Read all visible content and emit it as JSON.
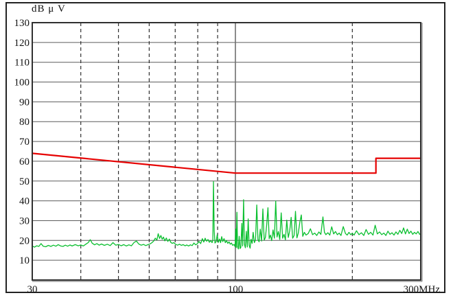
{
  "chart_data": {
    "type": "line",
    "title": "dB μ V",
    "x_axis": {
      "scale": "log",
      "min": 30,
      "max": 300,
      "unit": "MHz",
      "ticks": [
        {
          "label": "30",
          "value": 30
        },
        {
          "label": "100",
          "value": 100
        },
        {
          "label": "300MHz",
          "value": 300
        }
      ],
      "dashed_gridlines": [
        40,
        50,
        60,
        70,
        80,
        90,
        200
      ],
      "solid_gridlines": [
        100
      ]
    },
    "y_axis": {
      "min": 0,
      "max": 130,
      "tick_step": 10,
      "tick_labels": [
        130,
        120,
        110,
        100,
        90,
        80,
        70,
        60,
        50,
        40,
        30,
        20,
        10
      ],
      "unit": "dBμV",
      "grid": true
    },
    "colors": {
      "limit_line": "#e60000",
      "emission_trace": "#0abf2f",
      "h_grid": "#5c5c5c",
      "v_grid_dashed": "#2e2e2e",
      "v_grid_solid": "#6e6e6e",
      "plot_border": "#2f2f2f",
      "text": "#111111"
    },
    "legend": {
      "shown": false
    },
    "series": [
      {
        "name": "limit-line",
        "role": "limit",
        "points": [
          [
            30,
            64
          ],
          [
            100,
            54
          ],
          [
            230,
            54
          ],
          [
            230,
            61.5
          ],
          [
            300,
            61.5
          ]
        ]
      },
      {
        "name": "emission-trace",
        "role": "measurement",
        "points": [
          [
            30,
            17.2
          ],
          [
            30.4,
            16.6
          ],
          [
            30.8,
            17.3
          ],
          [
            31.2,
            17.0
          ],
          [
            31.6,
            18.4
          ],
          [
            32,
            17.1
          ],
          [
            32.5,
            16.8
          ],
          [
            33,
            17.5
          ],
          [
            33.5,
            17.0
          ],
          [
            34,
            17.6
          ],
          [
            34.5,
            17.1
          ],
          [
            35,
            17.9
          ],
          [
            35.5,
            17.2
          ],
          [
            36,
            17.0
          ],
          [
            36.5,
            17.6
          ],
          [
            37,
            17.1
          ],
          [
            37.5,
            17.7
          ],
          [
            38,
            17.2
          ],
          [
            38.7,
            17.9
          ],
          [
            39.4,
            17.3
          ],
          [
            40,
            17.7
          ],
          [
            40.6,
            17.2
          ],
          [
            41.2,
            18.1
          ],
          [
            41.8,
            18.9
          ],
          [
            42.3,
            20.4
          ],
          [
            42.8,
            18.6
          ],
          [
            43.4,
            17.8
          ],
          [
            44,
            18.4
          ],
          [
            44.6,
            17.6
          ],
          [
            45.2,
            18.2
          ],
          [
            46,
            17.5
          ],
          [
            46.8,
            18.1
          ],
          [
            47.6,
            17.4
          ],
          [
            48.4,
            18.9
          ],
          [
            49.2,
            17.6
          ],
          [
            50,
            18.0
          ],
          [
            50.8,
            17.3
          ],
          [
            51.6,
            17.9
          ],
          [
            52.4,
            17.2
          ],
          [
            53.2,
            17.8
          ],
          [
            54,
            17.3
          ],
          [
            54.8,
            18.9
          ],
          [
            55.6,
            19.7
          ],
          [
            56.4,
            18.2
          ],
          [
            57.2,
            17.6
          ],
          [
            58,
            18.0
          ],
          [
            58.8,
            17.4
          ],
          [
            59.6,
            17.9
          ],
          [
            60.4,
            18.3
          ],
          [
            61,
            18.9
          ],
          [
            61.6,
            19.7
          ],
          [
            62.2,
            21.1
          ],
          [
            62.8,
            20.2
          ],
          [
            63.3,
            23.4
          ],
          [
            63.8,
            21.0
          ],
          [
            64.3,
            22.5
          ],
          [
            64.8,
            20.6
          ],
          [
            65.3,
            21.7
          ],
          [
            65.8,
            19.8
          ],
          [
            66.4,
            21.2
          ],
          [
            67,
            19.5
          ],
          [
            67.6,
            20.7
          ],
          [
            68.2,
            19.0
          ],
          [
            68.8,
            18.5
          ],
          [
            69.4,
            18.9
          ],
          [
            70.2,
            18.0
          ],
          [
            71,
            17.6
          ],
          [
            71.8,
            18.1
          ],
          [
            72.6,
            17.5
          ],
          [
            73.4,
            17.9
          ],
          [
            74.2,
            17.3
          ],
          [
            75,
            17.7
          ],
          [
            75.8,
            17.2
          ],
          [
            76.6,
            17.8
          ],
          [
            77.4,
            17.4
          ],
          [
            78.2,
            18.7
          ],
          [
            79,
            17.8
          ],
          [
            79.8,
            18.3
          ],
          [
            80.6,
            19.5
          ],
          [
            81.4,
            18.4
          ],
          [
            82.2,
            20.9
          ],
          [
            82.9,
            19.2
          ],
          [
            83.6,
            21.1
          ],
          [
            84.3,
            19.6
          ],
          [
            85,
            20.5
          ],
          [
            85.7,
            19.1
          ],
          [
            86.4,
            19.9
          ],
          [
            87.1,
            18.9
          ],
          [
            87.5,
            20.1
          ],
          [
            87.8,
            49.7
          ],
          [
            88.2,
            24.8
          ],
          [
            88.6,
            18.7
          ],
          [
            89.2,
            19.4
          ],
          [
            89.8,
            22.9
          ],
          [
            90.4,
            19.0
          ],
          [
            91,
            20.7
          ],
          [
            91.6,
            18.9
          ],
          [
            92.2,
            21.9
          ],
          [
            92.8,
            19.4
          ],
          [
            93.5,
            20.9
          ],
          [
            94.2,
            18.9
          ],
          [
            94.9,
            19.9
          ],
          [
            95.6,
            18.5
          ],
          [
            96.3,
            19.3
          ],
          [
            97,
            18.1
          ],
          [
            97.7,
            18.7
          ],
          [
            98.4,
            17.5
          ],
          [
            99.2,
            18.0
          ],
          [
            99.8,
            16.9
          ],
          [
            100.2,
            25.8
          ],
          [
            100.5,
            16.4
          ],
          [
            100.9,
            34.2
          ],
          [
            101.3,
            16.8
          ],
          [
            101.8,
            15.7
          ],
          [
            102.3,
            22.1
          ],
          [
            102.8,
            15.9
          ],
          [
            103.3,
            16.5
          ],
          [
            103.9,
            28.6
          ],
          [
            104.4,
            17.2
          ],
          [
            105,
            40.6
          ],
          [
            105.5,
            18.1
          ],
          [
            106.1,
            16.3
          ],
          [
            106.7,
            24.6
          ],
          [
            107.3,
            16.7
          ],
          [
            107.9,
            30.9
          ],
          [
            108.5,
            17.5
          ],
          [
            109.1,
            16.1
          ],
          [
            109.7,
            20.6
          ],
          [
            110.4,
            18.5
          ],
          [
            111.1,
            24.1
          ],
          [
            111.9,
            18.9
          ],
          [
            112.7,
            20.3
          ],
          [
            113.5,
            37.9
          ],
          [
            114.3,
            20.5
          ],
          [
            115.1,
            19.3
          ],
          [
            115.9,
            25.7
          ],
          [
            116.8,
            19.7
          ],
          [
            117.7,
            35.9
          ],
          [
            118.6,
            20.1
          ],
          [
            119.5,
            21.5
          ],
          [
            120.4,
            28.1
          ],
          [
            121.3,
            36.5
          ],
          [
            122.2,
            20.9
          ],
          [
            123.1,
            22.7
          ],
          [
            124,
            19.9
          ],
          [
            125,
            25.3
          ],
          [
            126,
            21.1
          ],
          [
            127,
            39.9
          ],
          [
            128,
            21.7
          ],
          [
            129,
            24.5
          ],
          [
            130.1,
            20.5
          ],
          [
            131.2,
            33.9
          ],
          [
            132.3,
            21.1
          ],
          [
            133.4,
            23.1
          ],
          [
            134.5,
            20.3
          ],
          [
            135.6,
            30.3
          ],
          [
            136.8,
            21.5
          ],
          [
            138,
            24.9
          ],
          [
            139.2,
            31.7
          ],
          [
            140.4,
            21.1
          ],
          [
            141.6,
            22.5
          ],
          [
            142.8,
            34.7
          ],
          [
            144,
            21.3
          ],
          [
            145.2,
            23.7
          ],
          [
            146.5,
            29.1
          ],
          [
            147.8,
            32.9
          ],
          [
            149.1,
            22.1
          ],
          [
            150.5,
            24.1
          ],
          [
            152,
            22.7
          ],
          [
            154,
            23.5
          ],
          [
            156,
            25.9
          ],
          [
            158,
            22.9
          ],
          [
            160,
            23.7
          ],
          [
            162,
            22.5
          ],
          [
            164,
            24.3
          ],
          [
            166,
            23.1
          ],
          [
            168,
            31.9
          ],
          [
            169.5,
            24.1
          ],
          [
            171,
            22.9
          ],
          [
            173,
            23.9
          ],
          [
            175,
            22.7
          ],
          [
            177,
            26.9
          ],
          [
            179,
            23.3
          ],
          [
            181,
            24.5
          ],
          [
            183,
            22.9
          ],
          [
            185,
            23.7
          ],
          [
            187,
            22.5
          ],
          [
            189.5,
            27.0
          ],
          [
            192,
            23.5
          ],
          [
            194,
            22.7
          ],
          [
            196,
            24.1
          ],
          [
            198,
            22.9
          ],
          [
            200,
            23.6
          ],
          [
            202,
            22.7
          ],
          [
            205,
            24.9
          ],
          [
            208,
            22.9
          ],
          [
            211,
            23.9
          ],
          [
            214,
            22.5
          ],
          [
            217,
            25.5
          ],
          [
            220,
            23.1
          ],
          [
            223,
            24.1
          ],
          [
            226,
            22.7
          ],
          [
            229,
            27.7
          ],
          [
            232,
            23.3
          ],
          [
            235,
            24.3
          ],
          [
            238,
            22.9
          ],
          [
            241,
            23.7
          ],
          [
            244,
            22.5
          ],
          [
            247,
            24.7
          ],
          [
            250,
            23.1
          ],
          [
            253,
            23.9
          ],
          [
            256,
            22.7
          ],
          [
            259,
            24.3
          ],
          [
            262,
            23.1
          ],
          [
            265,
            25.1
          ],
          [
            268,
            23.5
          ],
          [
            271,
            26.3
          ],
          [
            274,
            23.3
          ],
          [
            277,
            25.7
          ],
          [
            280,
            23.5
          ],
          [
            283,
            24.7
          ],
          [
            286,
            23.1
          ],
          [
            289,
            24.1
          ],
          [
            292,
            23.3
          ],
          [
            295,
            24.5
          ],
          [
            298,
            23.1
          ],
          [
            300,
            23.5
          ]
        ]
      }
    ]
  }
}
